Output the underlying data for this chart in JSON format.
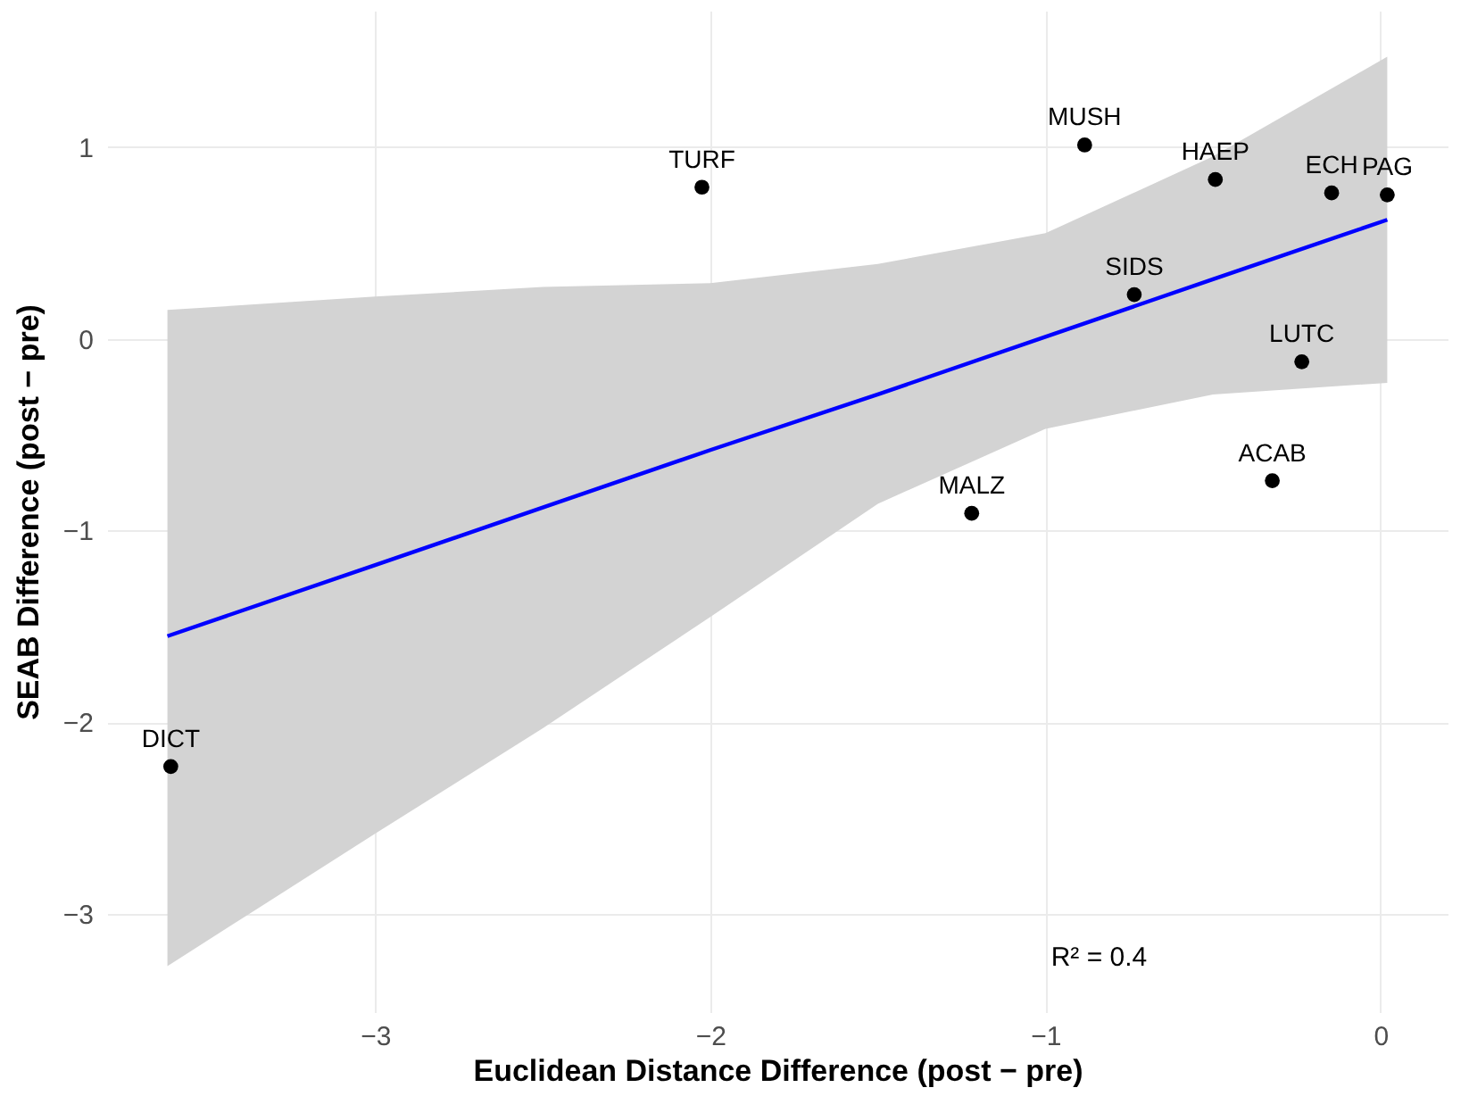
{
  "chart_data": {
    "type": "scatter",
    "xlabel": "Euclidean Distance Difference (post − pre)",
    "ylabel": "SEAB Difference (post − pre)",
    "xlim": [
      -3.8,
      0.2
    ],
    "ylim": [
      -3.51,
      1.71
    ],
    "xticks": [
      -3,
      -2,
      -1,
      0
    ],
    "yticks": [
      -3,
      -2,
      -1,
      0,
      1
    ],
    "grid": true,
    "series": [
      {
        "marker": "circle",
        "color": "#000000",
        "x": [
          -3.61,
          -2.025,
          -1.22,
          -0.883,
          -0.735,
          -0.493,
          -0.323,
          -0.235,
          -0.146,
          0.02
        ],
        "values": [
          -2.23,
          0.79,
          -0.91,
          1.01,
          0.23,
          0.83,
          -0.74,
          -0.12,
          0.76,
          0.75
        ]
      },
      {
        "type": "line",
        "color": "#0000ff",
        "line_style": "solid",
        "x": [
          -3.62,
          -3,
          -2.5,
          -2,
          -1.5,
          -1,
          -0.5,
          0.02
        ],
        "values": [
          -1.55,
          -1.18,
          -0.88,
          -0.58,
          -0.29,
          0.01,
          0.31,
          0.62
        ],
        "lower": [
          -3.27,
          -2.58,
          -2.03,
          -1.45,
          -0.86,
          -0.47,
          -0.29,
          -0.23
        ],
        "upper": [
          0.15,
          0.22,
          0.27,
          0.29,
          0.39,
          0.55,
          0.95,
          1.47
        ]
      }
    ],
    "annotations": [
      {
        "text": "DICT",
        "x": -3.61,
        "y": -2.23
      },
      {
        "text": "TURF",
        "x": -2.025,
        "y": 0.79
      },
      {
        "text": "MALZ",
        "x": -1.22,
        "y": -0.91
      },
      {
        "text": "MUSH",
        "x": -0.883,
        "y": 1.01
      },
      {
        "text": "SIDS",
        "x": -0.735,
        "y": 0.23
      },
      {
        "text": "HAEP",
        "x": -0.493,
        "y": 0.83
      },
      {
        "text": "ACAB",
        "x": -0.323,
        "y": -0.74
      },
      {
        "text": "LUTC",
        "x": -0.235,
        "y": -0.12
      },
      {
        "text": "ECH",
        "x": -0.146,
        "y": 0.76
      },
      {
        "text": "PAG",
        "x": 0.02,
        "y": 0.75
      },
      "R² = 0.4"
    ]
  }
}
